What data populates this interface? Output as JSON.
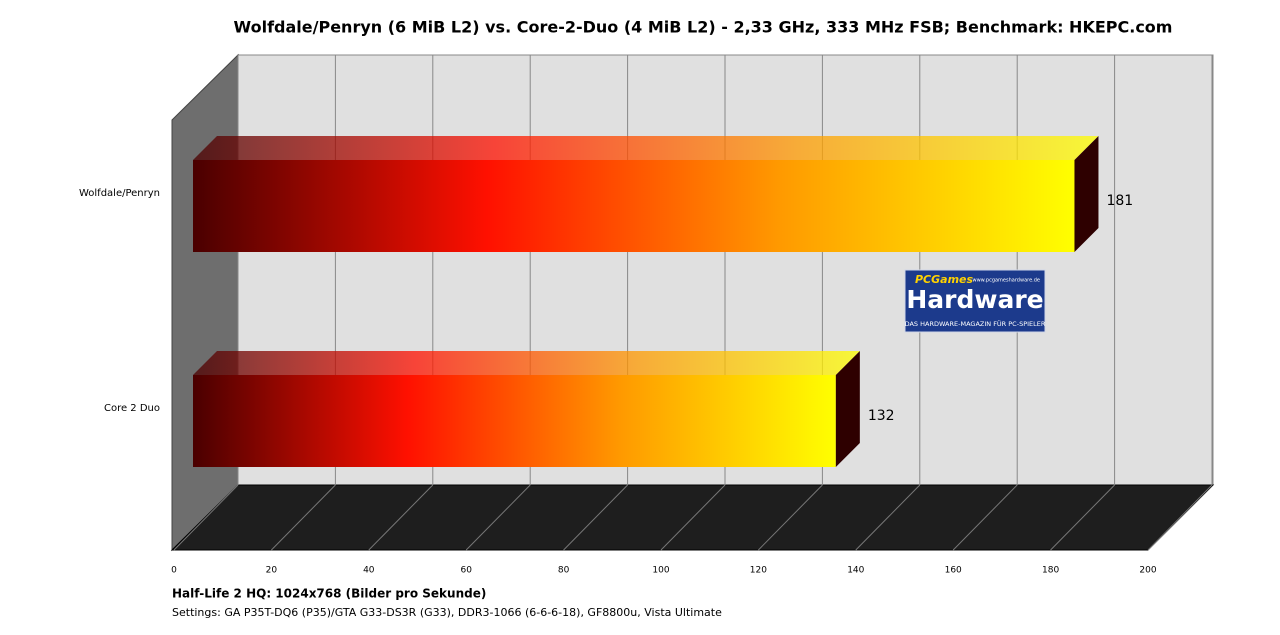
{
  "chart_data": {
    "type": "bar",
    "orientation": "horizontal",
    "title": "Wolfdale/Penryn (6 MiB L2) vs. Core-2-Duo (4 MiB L2)  - 2,33 GHz, 333 MHz FSB; Benchmark: HKEPC.com",
    "categories": [
      "Wolfdale/Penryn",
      "Core 2 Duo"
    ],
    "values": [
      181,
      132
    ],
    "color_stops": [
      "#4a0000",
      "#ff1000",
      "#ff9a00",
      "#ffff00"
    ],
    "xlim": [
      0,
      200
    ],
    "xticks": [
      0,
      20,
      40,
      60,
      80,
      100,
      120,
      140,
      160,
      180,
      200
    ],
    "grid": true,
    "x_label": "Half-Life 2 HQ: 1024x768 (Bilder pro Sekunde)",
    "note": "Settings:  GA P35T-DQ6 (P35)/GTA G33-DS3R (G33), DDR3-1066 (6-6-6-18), GF8800u, Vista Ultimate"
  },
  "logo": {
    "top": "PCGames",
    "url": "www.pcgameshardware.de",
    "main": "Hardware",
    "tagline": "DAS HARDWARE-MAGAZIN FÜR PC-SPIELER"
  }
}
